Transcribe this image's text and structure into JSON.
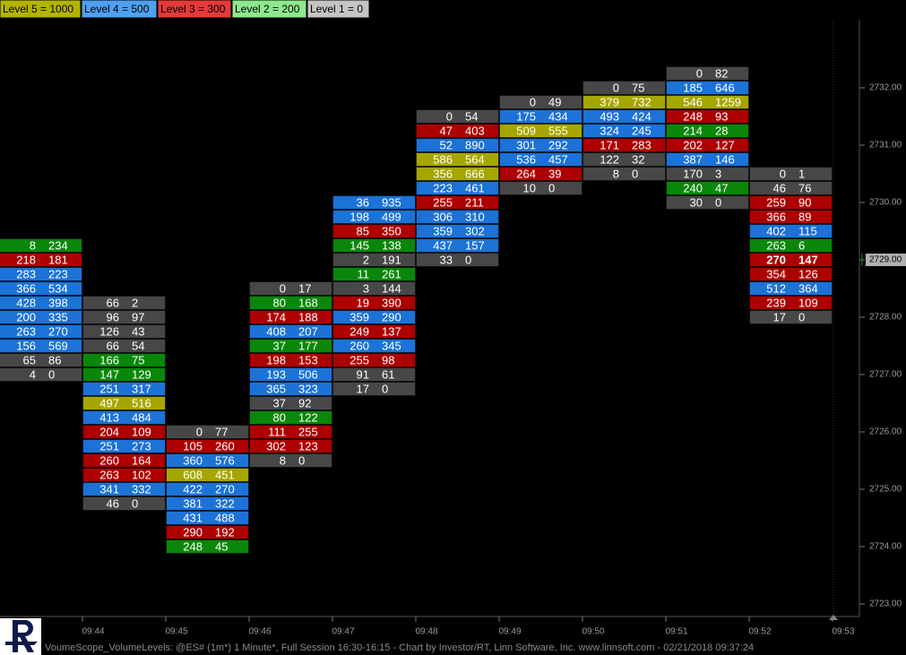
{
  "chart_data": {
    "type": "footprint",
    "legend": [
      {
        "label": "Level 5 = 1000",
        "threshold": 1000,
        "color": "#b4b400",
        "fill": "#a6a600"
      },
      {
        "label": "Level 4 = 500",
        "threshold": 500,
        "color": "#4fa0f0",
        "fill": "#1c72d6"
      },
      {
        "label": "Level 3 = 300",
        "threshold": 300,
        "color": "#e33a3a",
        "fill": "#ad0000"
      },
      {
        "label": "Level 2 = 200",
        "threshold": 200,
        "color": "#8ee88e",
        "fill": "#0a870a"
      },
      {
        "label": "Level 1 = 0",
        "threshold": 0,
        "color": "#c4c4c4",
        "fill": "#474747"
      }
    ],
    "columns": [
      {
        "rows": [
          {
            "price": 2729.25,
            "bid": 8,
            "ask": 234
          },
          {
            "price": 2729,
            "bid": 218,
            "ask": 181
          },
          {
            "price": 2728.75,
            "bid": 283,
            "ask": 223
          },
          {
            "price": 2728.5,
            "bid": 366,
            "ask": 534
          },
          {
            "price": 2728.25,
            "bid": 428,
            "ask": 398
          },
          {
            "price": 2728,
            "bid": 200,
            "ask": 335
          },
          {
            "price": 2727.75,
            "bid": 263,
            "ask": 270
          },
          {
            "price": 2727.5,
            "bid": 156,
            "ask": 569
          },
          {
            "price": 2727.25,
            "bid": 65,
            "ask": 86
          },
          {
            "price": 2727,
            "bid": 4,
            "ask": 0
          }
        ]
      },
      {
        "rows": [
          {
            "price": 2728.25,
            "bid": 66,
            "ask": 2
          },
          {
            "price": 2728,
            "bid": 96,
            "ask": 97
          },
          {
            "price": 2727.75,
            "bid": 126,
            "ask": 43
          },
          {
            "price": 2727.5,
            "bid": 66,
            "ask": 54
          },
          {
            "price": 2727.25,
            "bid": 166,
            "ask": 75
          },
          {
            "price": 2727,
            "bid": 147,
            "ask": 129
          },
          {
            "price": 2726.75,
            "bid": 251,
            "ask": 317
          },
          {
            "price": 2726.5,
            "bid": 497,
            "ask": 516
          },
          {
            "price": 2726.25,
            "bid": 413,
            "ask": 484
          },
          {
            "price": 2726,
            "bid": 204,
            "ask": 109
          },
          {
            "price": 2725.75,
            "bid": 251,
            "ask": 273
          },
          {
            "price": 2725.5,
            "bid": 260,
            "ask": 164
          },
          {
            "price": 2725.25,
            "bid": 263,
            "ask": 102
          },
          {
            "price": 2725,
            "bid": 341,
            "ask": 332
          },
          {
            "price": 2724.75,
            "bid": 46,
            "ask": 0
          }
        ]
      },
      {
        "rows": [
          {
            "price": 2726,
            "bid": 0,
            "ask": 77
          },
          {
            "price": 2725.75,
            "bid": 105,
            "ask": 260
          },
          {
            "price": 2725.5,
            "bid": 360,
            "ask": 576
          },
          {
            "price": 2725.25,
            "bid": 608,
            "ask": 451
          },
          {
            "price": 2725,
            "bid": 422,
            "ask": 270
          },
          {
            "price": 2724.75,
            "bid": 381,
            "ask": 322
          },
          {
            "price": 2724.5,
            "bid": 431,
            "ask": 488
          },
          {
            "price": 2724.25,
            "bid": 290,
            "ask": 192
          },
          {
            "price": 2724,
            "bid": 248,
            "ask": 45
          }
        ]
      },
      {
        "rows": [
          {
            "price": 2728.5,
            "bid": 0,
            "ask": 17
          },
          {
            "price": 2728.25,
            "bid": 80,
            "ask": 168
          },
          {
            "price": 2728,
            "bid": 174,
            "ask": 188
          },
          {
            "price": 2727.75,
            "bid": 408,
            "ask": 207
          },
          {
            "price": 2727.5,
            "bid": 37,
            "ask": 177
          },
          {
            "price": 2727.25,
            "bid": 198,
            "ask": 153
          },
          {
            "price": 2727,
            "bid": 193,
            "ask": 506
          },
          {
            "price": 2726.75,
            "bid": 365,
            "ask": 323
          },
          {
            "price": 2726.5,
            "bid": 37,
            "ask": 92
          },
          {
            "price": 2726.25,
            "bid": 80,
            "ask": 122
          },
          {
            "price": 2726,
            "bid": 111,
            "ask": 255
          },
          {
            "price": 2725.75,
            "bid": 302,
            "ask": 123
          },
          {
            "price": 2725.5,
            "bid": 8,
            "ask": 0
          }
        ]
      },
      {
        "rows": [
          {
            "price": 2730,
            "bid": 36,
            "ask": 935
          },
          {
            "price": 2729.75,
            "bid": 198,
            "ask": 499
          },
          {
            "price": 2729.5,
            "bid": 85,
            "ask": 350
          },
          {
            "price": 2729.25,
            "bid": 145,
            "ask": 138
          },
          {
            "price": 2729,
            "bid": 2,
            "ask": 191
          },
          {
            "price": 2728.75,
            "bid": 11,
            "ask": 261
          },
          {
            "price": 2728.5,
            "bid": 3,
            "ask": 144
          },
          {
            "price": 2728.25,
            "bid": 19,
            "ask": 390
          },
          {
            "price": 2728,
            "bid": 359,
            "ask": 290
          },
          {
            "price": 2727.75,
            "bid": 249,
            "ask": 137
          },
          {
            "price": 2727.5,
            "bid": 260,
            "ask": 345
          },
          {
            "price": 2727.25,
            "bid": 255,
            "ask": 98
          },
          {
            "price": 2727,
            "bid": 91,
            "ask": 61
          },
          {
            "price": 2726.75,
            "bid": 17,
            "ask": 0
          }
        ]
      },
      {
        "rows": [
          {
            "price": 2731.5,
            "bid": 0,
            "ask": 54
          },
          {
            "price": 2731.25,
            "bid": 47,
            "ask": 403
          },
          {
            "price": 2731,
            "bid": 52,
            "ask": 890
          },
          {
            "price": 2730.75,
            "bid": 586,
            "ask": 564
          },
          {
            "price": 2730.5,
            "bid": 356,
            "ask": 666
          },
          {
            "price": 2730.25,
            "bid": 223,
            "ask": 461
          },
          {
            "price": 2730,
            "bid": 255,
            "ask": 211
          },
          {
            "price": 2729.75,
            "bid": 306,
            "ask": 310
          },
          {
            "price": 2729.5,
            "bid": 359,
            "ask": 302
          },
          {
            "price": 2729.25,
            "bid": 437,
            "ask": 157
          },
          {
            "price": 2729,
            "bid": 33,
            "ask": 0
          }
        ]
      },
      {
        "rows": [
          {
            "price": 2731.75,
            "bid": 0,
            "ask": 49
          },
          {
            "price": 2731.5,
            "bid": 175,
            "ask": 434
          },
          {
            "price": 2731.25,
            "bid": 509,
            "ask": 555
          },
          {
            "price": 2731,
            "bid": 301,
            "ask": 292
          },
          {
            "price": 2730.75,
            "bid": 536,
            "ask": 457
          },
          {
            "price": 2730.5,
            "bid": 264,
            "ask": 39
          },
          {
            "price": 2730.25,
            "bid": 10,
            "ask": 0
          }
        ]
      },
      {
        "rows": [
          {
            "price": 2732,
            "bid": 0,
            "ask": 75
          },
          {
            "price": 2731.75,
            "bid": 379,
            "ask": 732
          },
          {
            "price": 2731.5,
            "bid": 493,
            "ask": 424
          },
          {
            "price": 2731.25,
            "bid": 324,
            "ask": 245
          },
          {
            "price": 2731,
            "bid": 171,
            "ask": 283
          },
          {
            "price": 2730.75,
            "bid": 122,
            "ask": 32
          },
          {
            "price": 2730.5,
            "bid": 8,
            "ask": 0
          }
        ]
      },
      {
        "rows": [
          {
            "price": 2732.25,
            "bid": 0,
            "ask": 82
          },
          {
            "price": 2732,
            "bid": 185,
            "ask": 646
          },
          {
            "price": 2731.75,
            "bid": 546,
            "ask": 1259
          },
          {
            "price": 2731.5,
            "bid": 248,
            "ask": 93
          },
          {
            "price": 2731.25,
            "bid": 214,
            "ask": 28
          },
          {
            "price": 2731,
            "bid": 202,
            "ask": 127
          },
          {
            "price": 2730.75,
            "bid": 387,
            "ask": 146
          },
          {
            "price": 2730.5,
            "bid": 170,
            "ask": 3
          },
          {
            "price": 2730.25,
            "bid": 240,
            "ask": 47
          },
          {
            "price": 2730,
            "bid": 30,
            "ask": 0
          }
        ]
      },
      {
        "rows": [
          {
            "price": 2730.5,
            "bid": 0,
            "ask": 1
          },
          {
            "price": 2730.25,
            "bid": 46,
            "ask": 76
          },
          {
            "price": 2730,
            "bid": 259,
            "ask": 90
          },
          {
            "price": 2729.75,
            "bid": 366,
            "ask": 89
          },
          {
            "price": 2729.5,
            "bid": 402,
            "ask": 115
          },
          {
            "price": 2729.25,
            "bid": 263,
            "ask": 6
          },
          {
            "price": 2729,
            "bid": 270,
            "ask": 147
          },
          {
            "price": 2728.75,
            "bid": 354,
            "ask": 126
          },
          {
            "price": 2728.5,
            "bid": 512,
            "ask": 364
          },
          {
            "price": 2728.25,
            "bid": 239,
            "ask": 109
          },
          {
            "price": 2728,
            "bid": 17,
            "ask": 0
          }
        ]
      }
    ],
    "ylim": [
      2722.78125,
      2733.1875
    ],
    "yticks": [
      {
        "value": 2723,
        "label": "2723.00"
      },
      {
        "value": 2724,
        "label": "2724.00"
      },
      {
        "value": 2725,
        "label": "2725.00"
      },
      {
        "value": 2726,
        "label": "2726.00"
      },
      {
        "value": 2727,
        "label": "2727.00"
      },
      {
        "value": 2728,
        "label": "2728.00"
      },
      {
        "value": 2729,
        "label": "2729.00"
      },
      {
        "value": 2730,
        "label": "2730.00"
      },
      {
        "value": 2731,
        "label": "2731.00"
      },
      {
        "value": 2732,
        "label": "2732.00"
      }
    ],
    "last_price": {
      "value": 2729,
      "label": "2729.00"
    },
    "x_labels": [
      "09:44",
      "09:45",
      "09:46",
      "09:47",
      "09:48",
      "09:49",
      "09:50",
      "09:51",
      "09:52",
      "09:53"
    ],
    "footer": "VoumeScope_VolumeLevels: @ES# (1m*) 1 Minute*, Full Session 16:30-16:15 - Chart by Investor/RT, Linn Software, Inc. www.linnsoft.com - 02/21/2018 09:37:24"
  }
}
